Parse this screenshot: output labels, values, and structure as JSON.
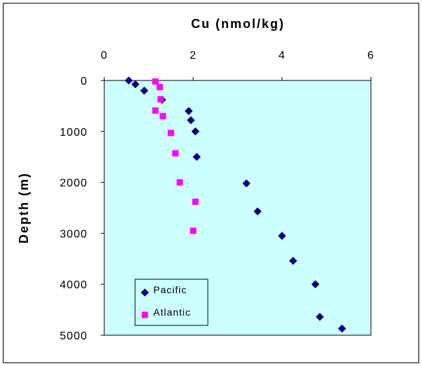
{
  "chart_data": {
    "type": "scatter",
    "title": "Cu (nmol/kg)",
    "xlabel": "Cu (nmol/kg)",
    "ylabel": "Depth (m)",
    "xlim": [
      0,
      6
    ],
    "ylim": [
      0,
      5000
    ],
    "x_axis_position": "top",
    "y_axis_inverted": true,
    "x_ticks": [
      "0",
      "2",
      "4",
      "6"
    ],
    "y_ticks": [
      "0",
      "1000",
      "2000",
      "3000",
      "4000",
      "5000"
    ],
    "plot_background": "#ccffff",
    "grid": false,
    "legend_position": "bottom-left",
    "series": [
      {
        "name": "Pacific",
        "marker": "diamond",
        "color": "#000080",
        "points": [
          {
            "x": 0.55,
            "y": 0
          },
          {
            "x": 0.7,
            "y": 75
          },
          {
            "x": 0.9,
            "y": 200
          },
          {
            "x": 1.3,
            "y": 380
          },
          {
            "x": 1.9,
            "y": 600
          },
          {
            "x": 1.95,
            "y": 780
          },
          {
            "x": 2.05,
            "y": 1000
          },
          {
            "x": 2.08,
            "y": 1500
          },
          {
            "x": 3.2,
            "y": 2020
          },
          {
            "x": 3.45,
            "y": 2570
          },
          {
            "x": 4.0,
            "y": 3050
          },
          {
            "x": 4.25,
            "y": 3540
          },
          {
            "x": 4.75,
            "y": 4000
          },
          {
            "x": 4.85,
            "y": 4640
          },
          {
            "x": 5.35,
            "y": 4870
          }
        ]
      },
      {
        "name": "Atlantic",
        "marker": "square",
        "color": "#ff00ff",
        "points": [
          {
            "x": 1.15,
            "y": 20
          },
          {
            "x": 1.25,
            "y": 130
          },
          {
            "x": 1.27,
            "y": 370
          },
          {
            "x": 1.15,
            "y": 590
          },
          {
            "x": 1.32,
            "y": 700
          },
          {
            "x": 1.5,
            "y": 1030
          },
          {
            "x": 1.6,
            "y": 1430
          },
          {
            "x": 1.7,
            "y": 2000
          },
          {
            "x": 2.05,
            "y": 2380
          },
          {
            "x": 2.0,
            "y": 2950
          }
        ]
      }
    ]
  }
}
